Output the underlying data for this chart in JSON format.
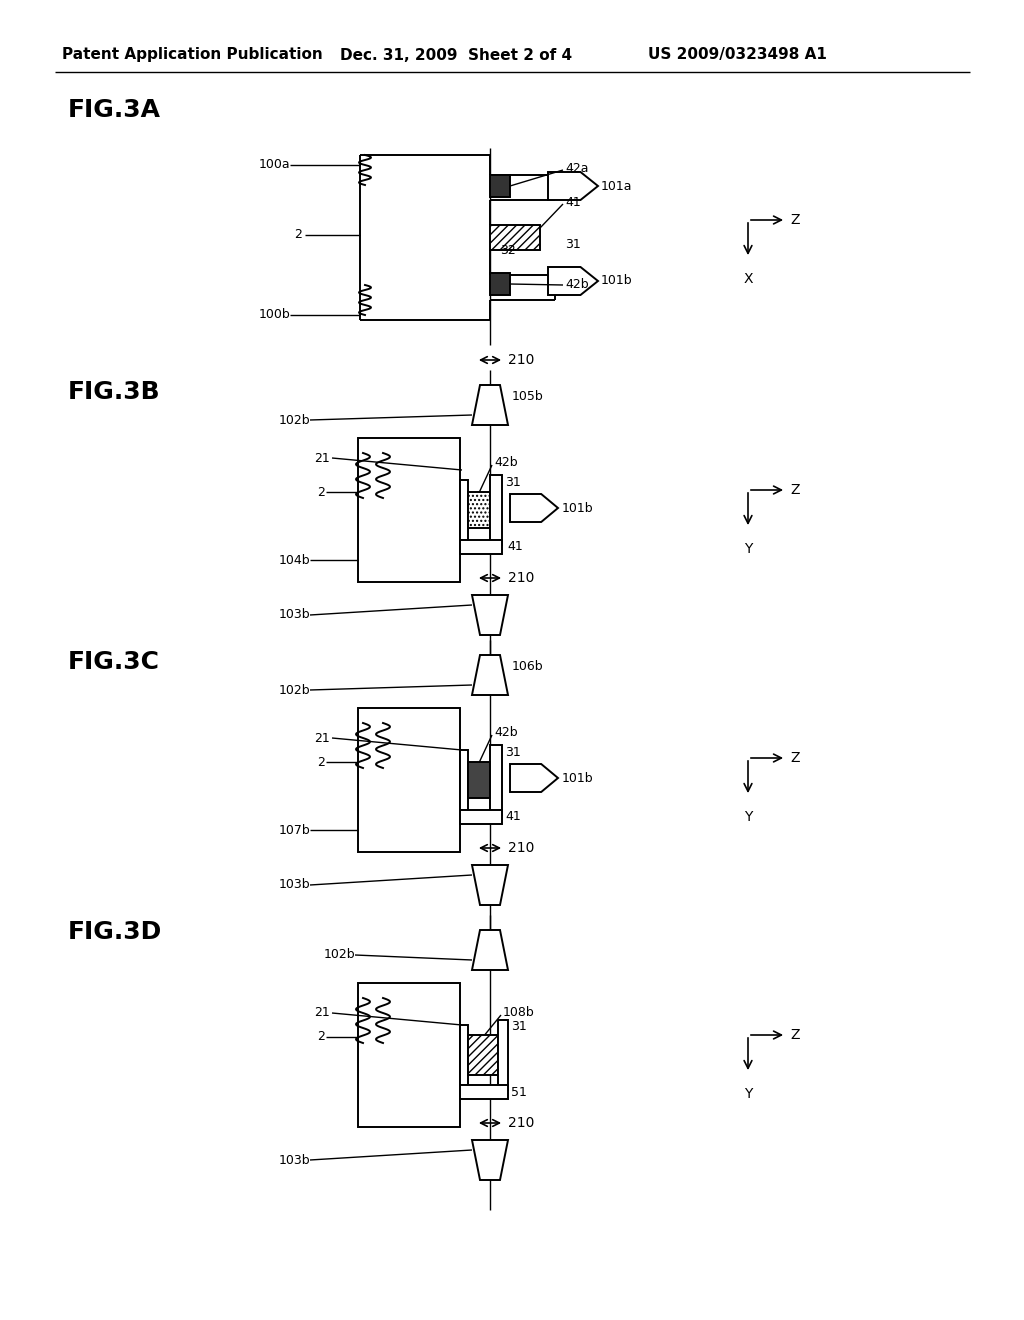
{
  "bg_color": "#ffffff",
  "header_left": "Patent Application Publication",
  "header_mid": "Dec. 31, 2009  Sheet 2 of 4",
  "header_right": "US 2009/0323498 A1",
  "fig3a_label": "FIG.3A",
  "fig3b_label": "FIG.3B",
  "fig3c_label": "FIG.3C",
  "fig3d_label": "FIG.3D",
  "line_color": "#000000",
  "text_color": "#000000",
  "hatch_color": "#000000",
  "dark_fill": "#555555",
  "gray_fill": "#aaaaaa"
}
